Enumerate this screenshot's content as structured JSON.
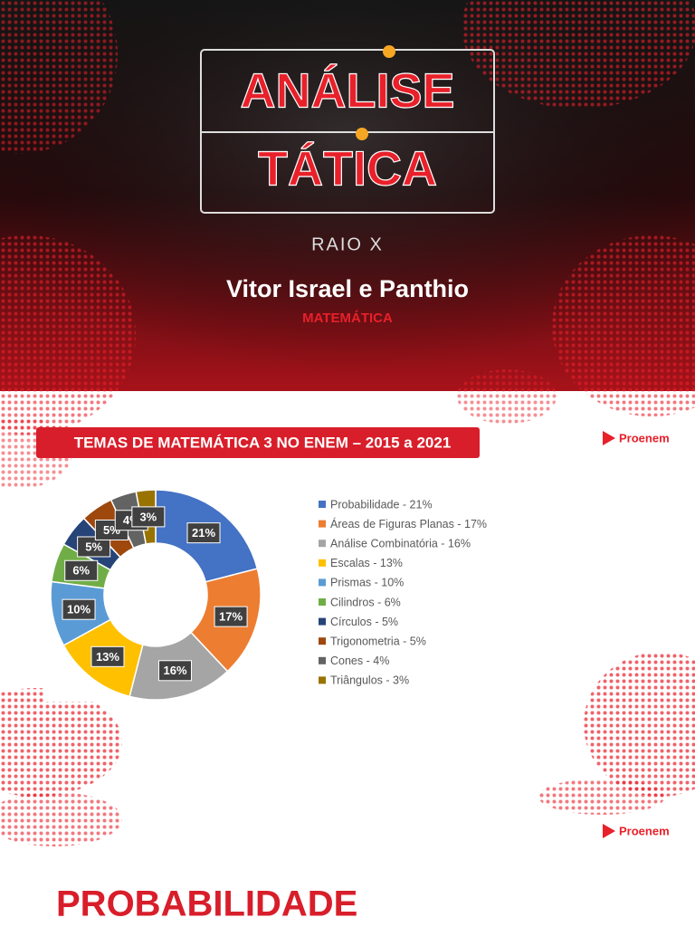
{
  "cover": {
    "title_line1": "ANÁLISE",
    "title_line2": "TÁTICA",
    "subtitle": "RAIO X",
    "presenters": "Vitor Israel e Panthio",
    "subject": "MATEMÁTICA"
  },
  "slide": {
    "banner": "TEMAS DE MATEMÁTICA 3 NO ENEM – 2015 a 2021",
    "logo": "Proenem"
  },
  "chart_data": {
    "type": "donut",
    "categories": [
      "Probabilidade - 21%",
      "Áreas de Figuras Planas - 17%",
      "Análise Combinatória - 16%",
      "Escalas - 13%",
      "Prismas - 10%",
      "Cilindros - 6%",
      "Círculos - 5%",
      "Trigonometria - 5%",
      "Cones - 4%",
      "Triângulos - 3%"
    ],
    "values": [
      21,
      17,
      16,
      13,
      10,
      6,
      5,
      5,
      4,
      3
    ],
    "value_labels": [
      "21%",
      "17%",
      "16%",
      "13%",
      "10%",
      "6%",
      "5%",
      "5%",
      "4%",
      "3%"
    ],
    "colors": [
      "#4472c4",
      "#ed7d31",
      "#a5a5a5",
      "#ffc000",
      "#5b9bd5",
      "#70ad47",
      "#264478",
      "#9e480e",
      "#636363",
      "#997300"
    ]
  },
  "next_slide": {
    "logo": "Proenem",
    "title": "PROBABILIDADE"
  }
}
